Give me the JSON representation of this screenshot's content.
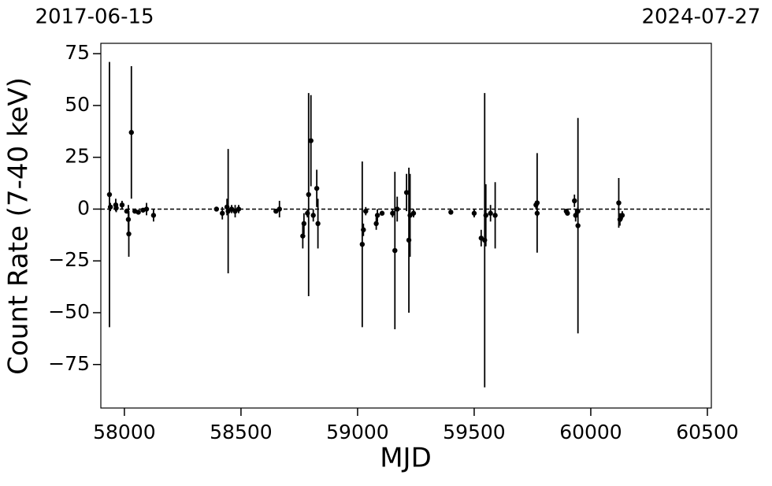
{
  "chart_data": {
    "type": "errorbar",
    "xlabel": "MJD",
    "ylabel": "Count Rate (7-40 keV)",
    "top_labels": [
      "2017-06-15",
      "2024-07-27"
    ],
    "xlim": [
      57899,
      60517
    ],
    "ylim": [
      -96,
      80
    ],
    "xticks": [
      58000,
      58500,
      59000,
      59500,
      60000,
      60500
    ],
    "yticks": [
      {
        "value": -75,
        "label": "−75"
      },
      {
        "value": -50,
        "label": "−50"
      },
      {
        "value": -25,
        "label": "−25"
      },
      0,
      25,
      50,
      75
    ],
    "reference_line": 0,
    "color": "#000000",
    "x": [
      57936,
      57940,
      57963,
      57965,
      57990,
      58010,
      58017,
      58019,
      58030,
      58045,
      58060,
      58080,
      58095,
      58125,
      58395,
      58420,
      58440,
      58445,
      58460,
      58475,
      58490,
      58650,
      58665,
      58765,
      58770,
      58785,
      58790,
      58800,
      58810,
      58825,
      58830,
      59020,
      59025,
      59035,
      59080,
      59085,
      59105,
      59150,
      59160,
      59170,
      59210,
      59220,
      59225,
      59240,
      59400,
      59500,
      59530,
      59545,
      59550,
      59570,
      59590,
      59765,
      59770,
      59770,
      59895,
      59900,
      59930,
      59935,
      59945,
      59945,
      60120,
      60125,
      60135
    ],
    "values": [
      7,
      1,
      2,
      0.5,
      2,
      -1,
      -5,
      -12,
      37,
      -1,
      -1.5,
      -0.5,
      0,
      -3,
      0,
      -2,
      1,
      -1,
      0,
      -1,
      0,
      -1,
      0,
      -13,
      -7,
      -2,
      7,
      33,
      -3,
      10,
      -7,
      -17,
      -10,
      -1,
      -7,
      -3,
      -2,
      -2,
      -20,
      0,
      8,
      -15,
      -3,
      -2,
      -1.5,
      -2,
      -14,
      -15,
      -3,
      -2,
      -3,
      2,
      3,
      -2,
      -1,
      -2,
      4,
      -3,
      -8,
      -1,
      3,
      -5,
      -3
    ],
    "errors": [
      64,
      2,
      3,
      2,
      2,
      1,
      7,
      11,
      32,
      1,
      1,
      1,
      3,
      3,
      1,
      3,
      4,
      30,
      2,
      3,
      2,
      1,
      4,
      6,
      5,
      2,
      49,
      22,
      3,
      9,
      12,
      40,
      3,
      2,
      3,
      3,
      1,
      2,
      38,
      6,
      9,
      35,
      20,
      2,
      1,
      2,
      4,
      71,
      15,
      4,
      16,
      2,
      24,
      2,
      1,
      1,
      3,
      3,
      52,
      2,
      12,
      3,
      2
    ]
  }
}
